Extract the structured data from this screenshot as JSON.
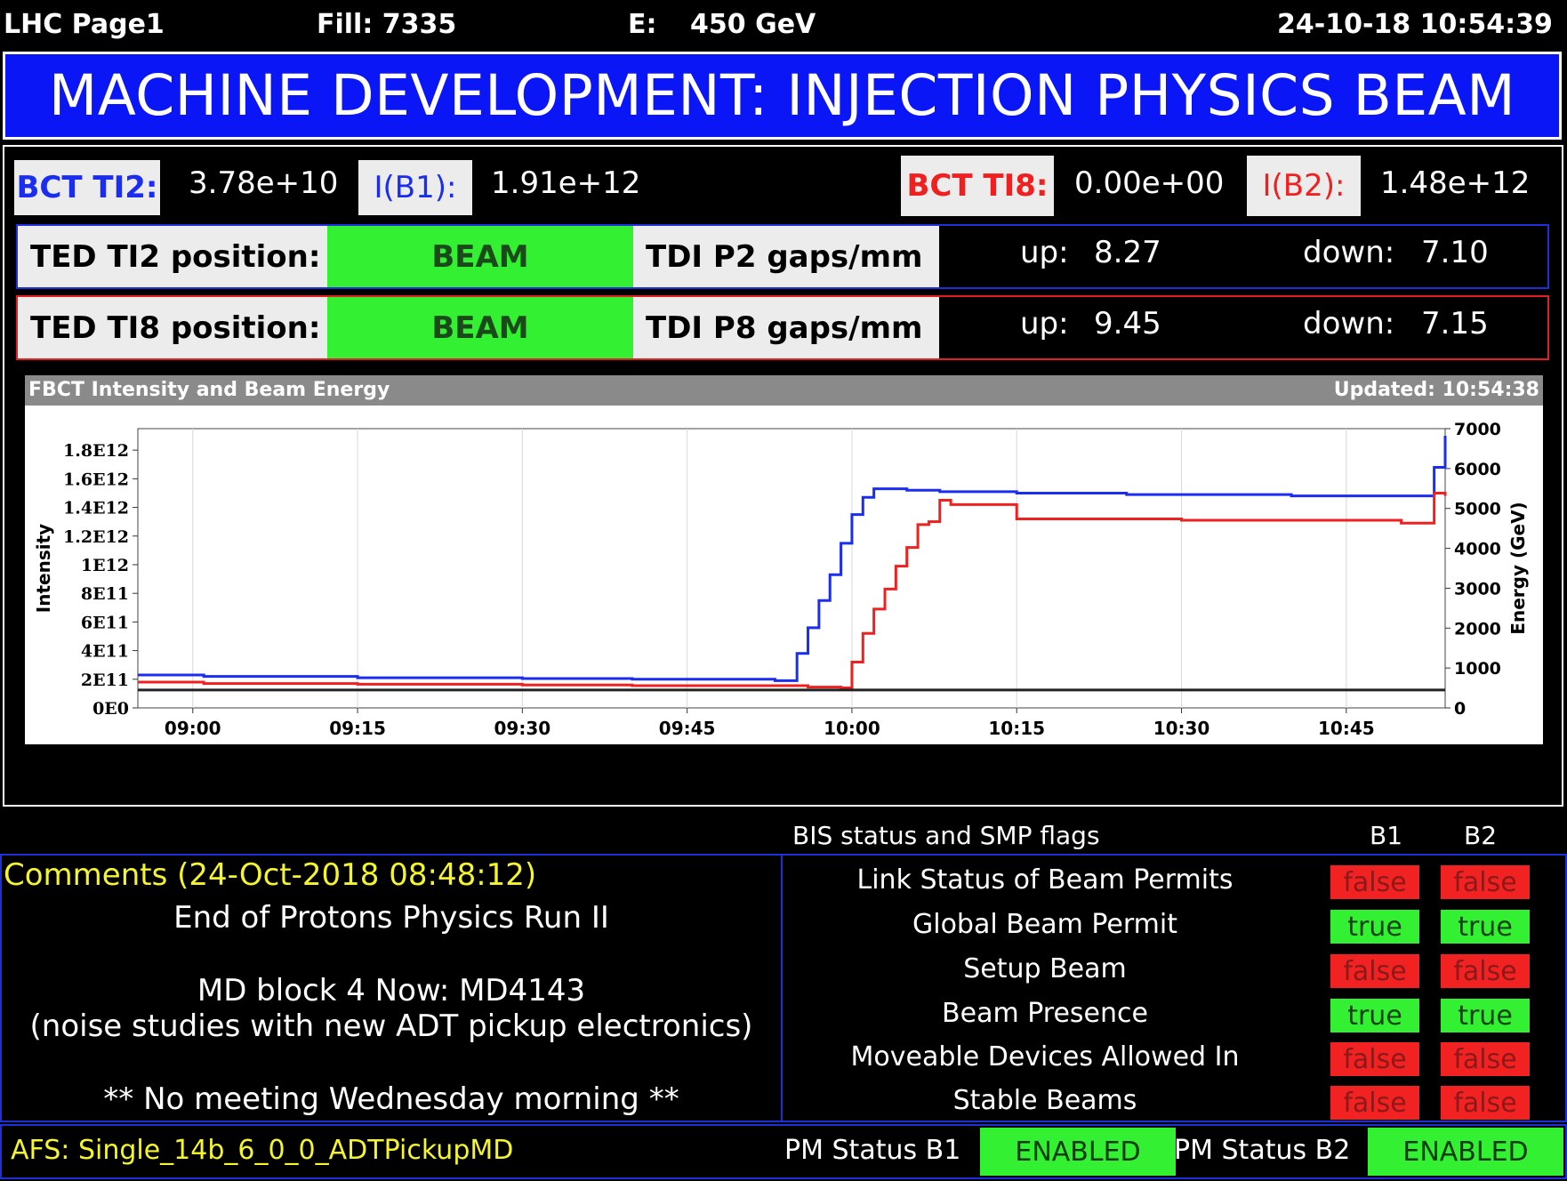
{
  "header": {
    "page": "LHC Page1",
    "fill": "Fill: 7335",
    "energy_label": "E:",
    "energy_value": "450 GeV",
    "datetime": "24-10-18 10:54:39"
  },
  "title": "MACHINE DEVELOPMENT: INJECTION PHYSICS BEAM",
  "bct": {
    "ti2_label": "BCT TI2:",
    "ti2_value": "3.78e+10",
    "ib1_label": "I(B1):",
    "ib1_value": "1.91e+12",
    "ti8_label": "BCT TI8:",
    "ti8_value": "0.00e+00",
    "ib2_label": "I(B2):",
    "ib2_value": "1.48e+12"
  },
  "ted": [
    {
      "label": "TED TI2 position:",
      "state": "BEAM",
      "gap_label": "TDI P2 gaps/mm",
      "up_label": "up:",
      "up": "8.27",
      "down_label": "down:",
      "down": "7.10"
    },
    {
      "label": "TED TI8 position:",
      "state": "BEAM",
      "gap_label": "TDI P8 gaps/mm",
      "up_label": "up:",
      "up": "9.45",
      "down_label": "down:",
      "down": "7.15"
    }
  ],
  "chart_panel": {
    "title": "FBCT Intensity and Beam Energy",
    "updated": "Updated: 10:54:38"
  },
  "chart_data": {
    "type": "line",
    "ylabel": "Intensity",
    "y2label": "Energy (GeV)",
    "xlim": [
      "08:55",
      "10:54"
    ],
    "x_ticks": [
      "09:00",
      "09:15",
      "09:30",
      "09:45",
      "10:00",
      "10:15",
      "10:30",
      "10:45"
    ],
    "y_ticks": [
      "0E0",
      "2E11",
      "4E11",
      "6E11",
      "8E11",
      "1E12",
      "1.2E12",
      "1.4E12",
      "1.6E12",
      "1.8E12"
    ],
    "ylim": [
      0,
      1950000000000.0
    ],
    "y2_ticks": [
      "0",
      "1000",
      "2000",
      "3000",
      "4000",
      "5000",
      "6000",
      "7000"
    ],
    "y2lim": [
      0,
      7000
    ],
    "grid": true,
    "series": [
      {
        "color": "#1a2df0",
        "axis": "left",
        "x": [
          "08:55",
          "09:01",
          "09:15",
          "09:30",
          "09:40",
          "09:53",
          "09:55",
          "09:56",
          "09:57",
          "09:58",
          "09:59",
          "10:00",
          "10:01",
          "10:02",
          "10:05",
          "10:08",
          "10:15",
          "10:25",
          "10:40",
          "10:53",
          "10:54"
        ],
        "values": [
          230000000000.0,
          220000000000.0,
          210000000000.0,
          205000000000.0,
          200000000000.0,
          190000000000.0,
          380000000000.0,
          560000000000.0,
          750000000000.0,
          930000000000.0,
          1150000000000.0,
          1350000000000.0,
          1470000000000.0,
          1530000000000.0,
          1520000000000.0,
          1510000000000.0,
          1500000000000.0,
          1490000000000.0,
          1480000000000.0,
          1680000000000.0,
          1900000000000.0
        ]
      },
      {
        "color": "#f02020",
        "axis": "left",
        "x": [
          "08:55",
          "09:01",
          "09:15",
          "09:30",
          "09:40",
          "09:56",
          "09:59",
          "10:00",
          "10:01",
          "10:02",
          "10:03",
          "10:04",
          "10:05",
          "10:06",
          "10:07",
          "10:08",
          "10:09",
          "10:15",
          "10:30",
          "10:50",
          "10:53",
          "10:54"
        ],
        "values": [
          180000000000.0,
          170000000000.0,
          165000000000.0,
          160000000000.0,
          155000000000.0,
          145000000000.0,
          140000000000.0,
          320000000000.0,
          520000000000.0,
          690000000000.0,
          830000000000.0,
          990000000000.0,
          1120000000000.0,
          1280000000000.0,
          1300000000000.0,
          1450000000000.0,
          1420000000000.0,
          1320000000000.0,
          1310000000000.0,
          1290000000000.0,
          1500000000000.0,
          1480000000000.0
        ]
      },
      {
        "color": "#222222",
        "axis": "right",
        "x": [
          "08:55",
          "10:54"
        ],
        "values": [
          450,
          450
        ]
      }
    ]
  },
  "bis": {
    "header": "BIS status and SMP flags",
    "col_b1": "B1",
    "col_b2": "B2",
    "rows": [
      {
        "name": "Link Status of Beam Permits",
        "b1": "false",
        "b2": "false"
      },
      {
        "name": "Global Beam Permit",
        "b1": "true",
        "b2": "true"
      },
      {
        "name": "Setup Beam",
        "b1": "false",
        "b2": "false"
      },
      {
        "name": "Beam Presence",
        "b1": "true",
        "b2": "true"
      },
      {
        "name": "Moveable Devices Allowed In",
        "b1": "false",
        "b2": "false"
      },
      {
        "name": "Stable Beams",
        "b1": "false",
        "b2": "false"
      }
    ]
  },
  "comments": {
    "header": "Comments (24-Oct-2018 08:48:12)",
    "lines": [
      "End of Protons Physics Run II",
      "MD block 4 Now: MD4143",
      "(noise studies with new ADT pickup electronics)",
      "** No meeting Wednesday morning **"
    ]
  },
  "footer": {
    "afs": "AFS: Single_14b_6_0_0_ADTPickupMD",
    "pm_b1_label": "PM Status B1",
    "pm_b1_value": "ENABLED",
    "pm_b2_label": "PM Status B2",
    "pm_b2_value": "ENABLED"
  },
  "colors": {
    "title_bg": "#0b16f6",
    "beam1": "#1a2df0",
    "beam2": "#f02020",
    "ok_green": "#33f033",
    "bad_red": "#f32222",
    "comment_yellow": "#f5f52a"
  }
}
